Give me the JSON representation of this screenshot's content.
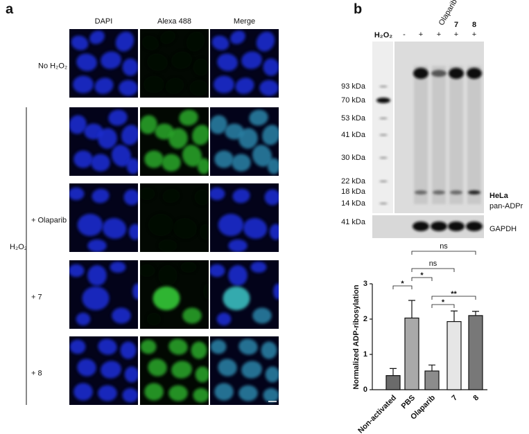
{
  "panel_a": {
    "label": "a",
    "columns": [
      "DAPI",
      "Alexa 488",
      "Merge"
    ],
    "row_labels": [
      "No H₂O₂",
      "+ Olaparib",
      "+ 7",
      "+ 8"
    ],
    "group_label": "H₂O₂"
  },
  "panel_b": {
    "label": "b",
    "treatment_label": "H₂O₂",
    "lanes": [
      "-",
      "+",
      "+",
      "+",
      "+"
    ],
    "lane_names": [
      "Olaparib",
      "7",
      "8"
    ],
    "markers": [
      "93 kDa",
      "70 kDa",
      "53 kDa",
      "41 kDa",
      "30 kDa",
      "22 kDa",
      "18 kDa",
      "14 kDa"
    ],
    "gapdh_marker": "41 kDa",
    "cell_line": "HeLa",
    "blot_label": "pan-ADPr",
    "loading_control": "GAPDH"
  },
  "chart_data": {
    "type": "bar",
    "y_label": "Normalized ADP-ribosylation",
    "categories": [
      "Non-activated",
      "PBS",
      "Olaparib",
      "7",
      "8"
    ],
    "values": [
      0.4,
      2.03,
      0.53,
      1.93,
      2.1
    ],
    "errors": [
      0.2,
      0.5,
      0.17,
      0.3,
      0.12
    ],
    "colors": [
      "#6b6b6b",
      "#a9a9a9",
      "#8c8c8c",
      "#e6e6e6",
      "#787878"
    ],
    "ylim": [
      0,
      3
    ],
    "yticks": [
      0,
      1,
      2,
      3
    ],
    "annotations": [
      {
        "from": "PBS",
        "to": "8",
        "label": "ns"
      },
      {
        "from": "PBS",
        "to": "7",
        "label": "ns"
      },
      {
        "from": "PBS",
        "to": "Olaparib",
        "label": "*"
      },
      {
        "from": "Non-activated",
        "to": "PBS",
        "label": "*"
      },
      {
        "from": "Olaparib",
        "to": "8",
        "label": "**"
      },
      {
        "from": "Olaparib",
        "to": "7",
        "label": "*"
      }
    ]
  }
}
